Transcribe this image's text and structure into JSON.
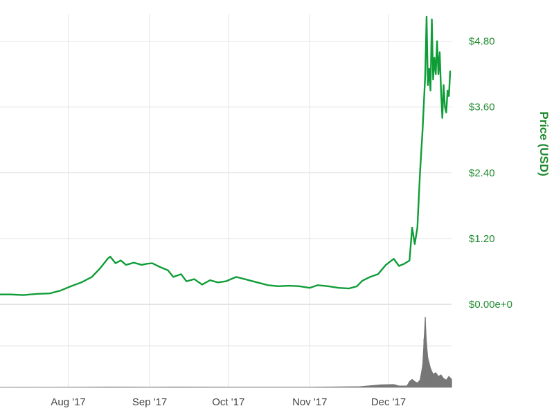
{
  "colors": {
    "price_line": "#0f9d38",
    "price_axis": "#1f8a2e",
    "volume": "#777777",
    "grid": "#e4e4e4"
  },
  "chart_data": {
    "type": "line",
    "ylabel": "Price (USD)",
    "y_tick_labels": [
      "$0.00e+0",
      "$1.20",
      "$2.40",
      "$3.60",
      "$4.80"
    ],
    "ylim": [
      0,
      5.3
    ],
    "xlim": [
      "2017-07-06",
      "2017-12-25"
    ],
    "x_ticks": [
      {
        "date": "2017-08-01",
        "label": "Aug '17"
      },
      {
        "date": "2017-09-01",
        "label": "Sep '17"
      },
      {
        "date": "2017-10-01",
        "label": "Oct '17"
      },
      {
        "date": "2017-11-01",
        "label": "Nov '17"
      },
      {
        "date": "2017-12-01",
        "label": "Dec '17"
      }
    ],
    "grid": true,
    "series": [
      {
        "values": [
          [
            "2017-07-06",
            0.18
          ],
          [
            "2017-07-10",
            0.18
          ],
          [
            "2017-07-15",
            0.17
          ],
          [
            "2017-07-20",
            0.19
          ],
          [
            "2017-07-25",
            0.2
          ],
          [
            "2017-07-29",
            0.25
          ],
          [
            "2017-08-02",
            0.33
          ],
          [
            "2017-08-06",
            0.4
          ],
          [
            "2017-08-10",
            0.5
          ],
          [
            "2017-08-13",
            0.65
          ],
          [
            "2017-08-16",
            0.83
          ],
          [
            "2017-08-17",
            0.87
          ],
          [
            "2017-08-19",
            0.75
          ],
          [
            "2017-08-21",
            0.8
          ],
          [
            "2017-08-23",
            0.72
          ],
          [
            "2017-08-26",
            0.76
          ],
          [
            "2017-08-29",
            0.72
          ],
          [
            "2017-08-31",
            0.74
          ],
          [
            "2017-09-02",
            0.75
          ],
          [
            "2017-09-05",
            0.68
          ],
          [
            "2017-09-08",
            0.62
          ],
          [
            "2017-09-10",
            0.5
          ],
          [
            "2017-09-13",
            0.55
          ],
          [
            "2017-09-15",
            0.42
          ],
          [
            "2017-09-18",
            0.46
          ],
          [
            "2017-09-21",
            0.36
          ],
          [
            "2017-09-24",
            0.44
          ],
          [
            "2017-09-27",
            0.4
          ],
          [
            "2017-09-30",
            0.42
          ],
          [
            "2017-10-04",
            0.5
          ],
          [
            "2017-10-08",
            0.45
          ],
          [
            "2017-10-12",
            0.4
          ],
          [
            "2017-10-16",
            0.35
          ],
          [
            "2017-10-20",
            0.33
          ],
          [
            "2017-10-24",
            0.34
          ],
          [
            "2017-10-28",
            0.33
          ],
          [
            "2017-11-01",
            0.3
          ],
          [
            "2017-11-04",
            0.35
          ],
          [
            "2017-11-08",
            0.33
          ],
          [
            "2017-11-12",
            0.3
          ],
          [
            "2017-11-16",
            0.29
          ],
          [
            "2017-11-19",
            0.33
          ],
          [
            "2017-11-21",
            0.43
          ],
          [
            "2017-11-24",
            0.5
          ],
          [
            "2017-11-27",
            0.55
          ],
          [
            "2017-11-30",
            0.72
          ],
          [
            "2017-12-03",
            0.83
          ],
          [
            "2017-12-05",
            0.7
          ],
          [
            "2017-12-07",
            0.74
          ],
          [
            "2017-12-09",
            0.8
          ],
          [
            "2017-12-10",
            1.4
          ],
          [
            "2017-12-11",
            1.1
          ],
          [
            "2017-12-12",
            1.4
          ],
          [
            "2017-12-13",
            2.4
          ],
          [
            "2017-12-14",
            3.2
          ],
          [
            "2017-12-15",
            4.2
          ],
          [
            "2017-12-15.5",
            5.25
          ],
          [
            "2017-12-16",
            4.0
          ],
          [
            "2017-12-16.5",
            4.3
          ],
          [
            "2017-12-17",
            3.9
          ],
          [
            "2017-12-17.5",
            5.2
          ],
          [
            "2017-12-18",
            4.1
          ],
          [
            "2017-12-18.5",
            4.5
          ],
          [
            "2017-12-19",
            4.2
          ],
          [
            "2017-12-19.5",
            4.8
          ],
          [
            "2017-12-20",
            4.2
          ],
          [
            "2017-12-20.5",
            4.6
          ],
          [
            "2017-12-21",
            3.9
          ],
          [
            "2017-12-21.5",
            3.4
          ],
          [
            "2017-12-22",
            4.0
          ],
          [
            "2017-12-22.5",
            3.6
          ],
          [
            "2017-12-23",
            3.5
          ],
          [
            "2017-12-23.5",
            3.9
          ],
          [
            "2017-12-24",
            3.8
          ],
          [
            "2017-12-24.5",
            4.25
          ]
        ]
      }
    ],
    "volume_values": [
      [
        "2017-07-06",
        0.0
      ],
      [
        "2017-08-01",
        0.001
      ],
      [
        "2017-08-17",
        0.004
      ],
      [
        "2017-09-01",
        0.002
      ],
      [
        "2017-09-10",
        0.004
      ],
      [
        "2017-10-01",
        0.002
      ],
      [
        "2017-11-01",
        0.002
      ],
      [
        "2017-11-20",
        0.01
      ],
      [
        "2017-11-28",
        0.035
      ],
      [
        "2017-12-03",
        0.04
      ],
      [
        "2017-12-05",
        0.02
      ],
      [
        "2017-12-08",
        0.02
      ],
      [
        "2017-12-09",
        0.08
      ],
      [
        "2017-12-10",
        0.11
      ],
      [
        "2017-12-11",
        0.08
      ],
      [
        "2017-12-12",
        0.06
      ],
      [
        "2017-12-13",
        0.1
      ],
      [
        "2017-12-14",
        0.3
      ],
      [
        "2017-12-14.5",
        0.65
      ],
      [
        "2017-12-15",
        0.95
      ],
      [
        "2017-12-15.5",
        0.6
      ],
      [
        "2017-12-16",
        0.4
      ],
      [
        "2017-12-16.5",
        0.33
      ],
      [
        "2017-12-17",
        0.26
      ],
      [
        "2017-12-18",
        0.18
      ],
      [
        "2017-12-19",
        0.2
      ],
      [
        "2017-12-20",
        0.15
      ],
      [
        "2017-12-21",
        0.17
      ],
      [
        "2017-12-22",
        0.12
      ],
      [
        "2017-12-23",
        0.1
      ],
      [
        "2017-12-24",
        0.15
      ],
      [
        "2017-12-25",
        0.11
      ]
    ]
  }
}
